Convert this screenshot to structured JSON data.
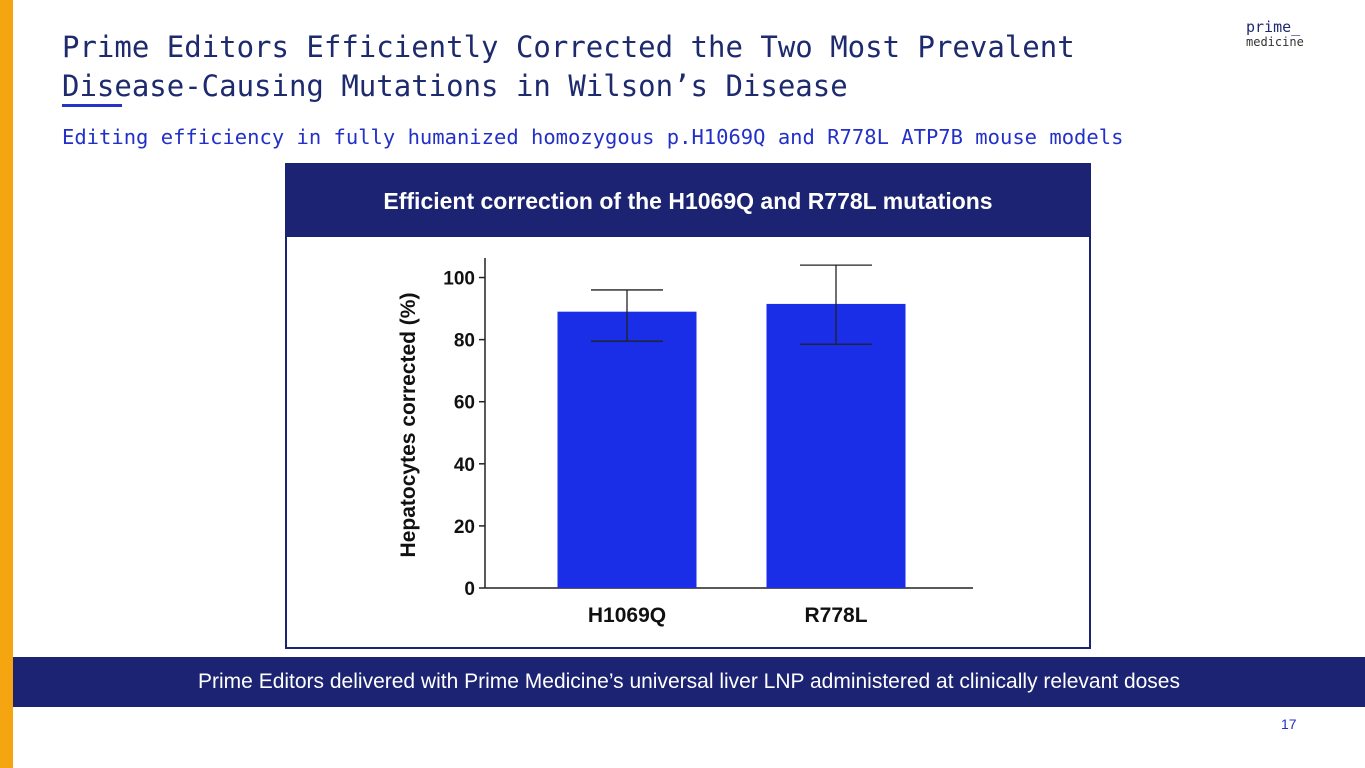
{
  "slide": {
    "title": "Prime Editors Efficiently Corrected the Two Most Prevalent\nDisease-Causing Mutations in Wilson’s Disease",
    "subtitle": "Editing efficiency in fully humanized homozygous p.H1069Q and R778L ATP7B mouse models",
    "footer": "Prime Editors delivered with Prime Medicine’s universal liver LNP administered at clinically relevant doses",
    "page_number": "17",
    "accent_color": "#f5a50f",
    "navy_color": "#1b2372"
  },
  "logo": {
    "line1": "prime_",
    "line2": "medicine"
  },
  "panel": {
    "header": "Efficient correction of the H1069Q and R778L mutations"
  },
  "chart_data": {
    "type": "bar",
    "title": "Efficient correction of the H1069Q and R778L mutations",
    "categories": [
      "H1069Q",
      "R778L"
    ],
    "values": [
      89,
      91.5
    ],
    "error_low": [
      79.5,
      78.5
    ],
    "error_high": [
      96,
      104
    ],
    "xlabel": "",
    "ylabel": "Hepatocytes corrected (%)",
    "ylim": [
      0,
      105
    ],
    "yticks": [
      "0",
      "20",
      "40",
      "60",
      "80",
      "100"
    ],
    "bar_color": "#1a2ee8",
    "grid": false
  }
}
